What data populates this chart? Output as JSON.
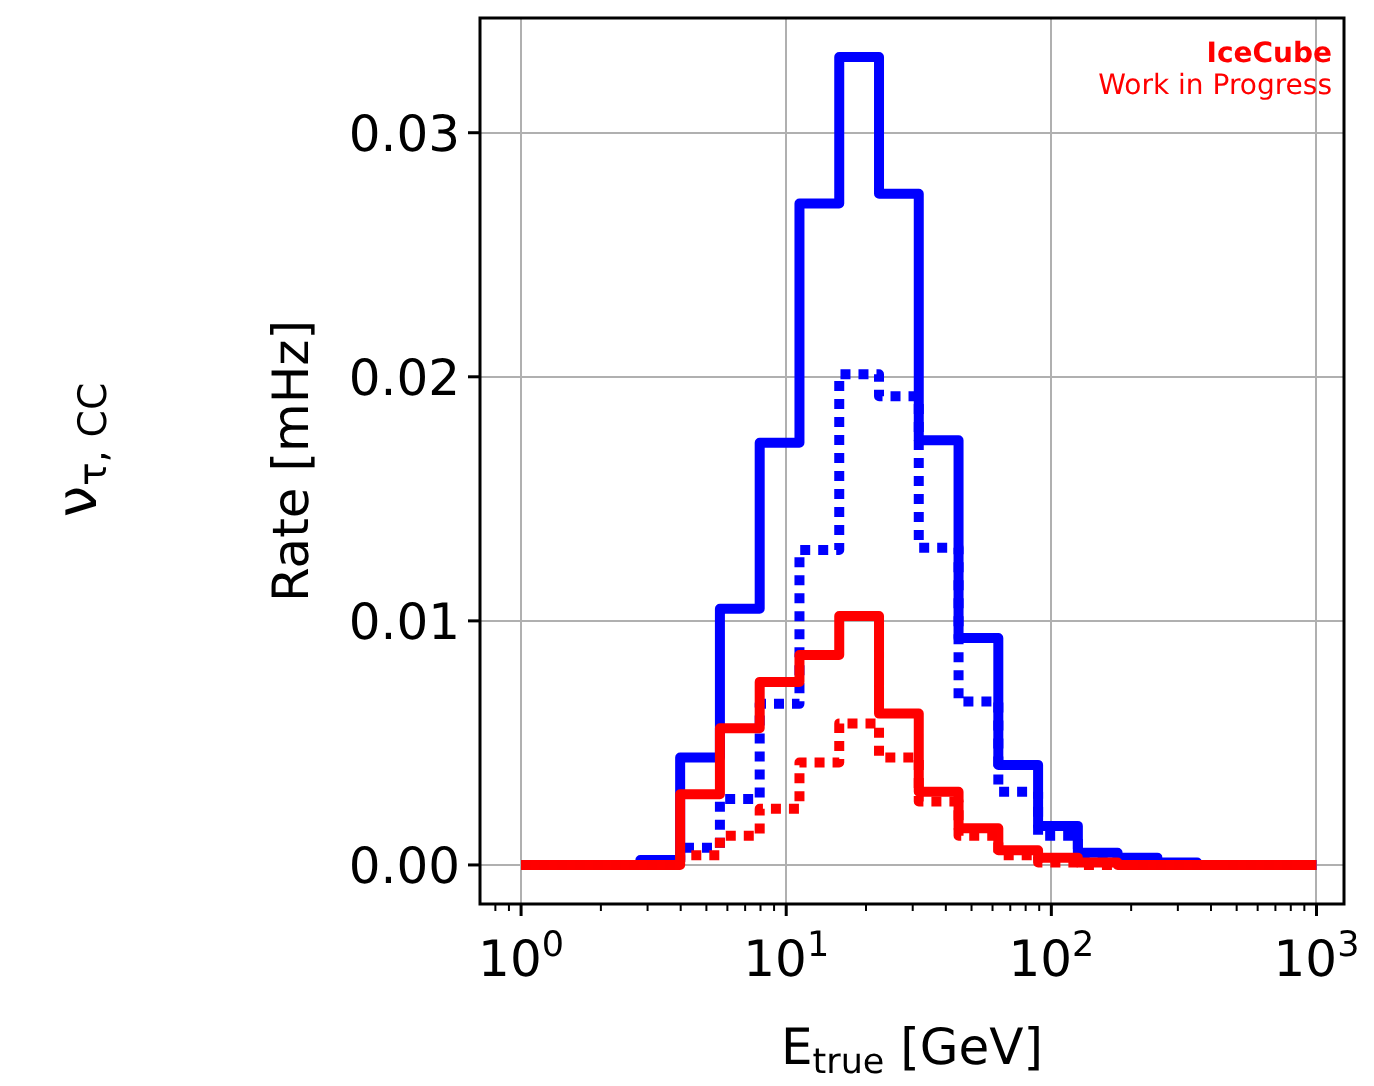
{
  "chart_data": {
    "type": "histogram",
    "xlabel": "E$_{true}$ [GeV]",
    "ylabel": "Rate [mHz]",
    "annotations": [
      "IceCube",
      "Work in Progress",
      "ν$_{τ, CC}$"
    ],
    "bins": [
      1,
      1.413,
      1.995,
      2.818,
      3.981,
      5.623,
      7.943,
      11.22,
      15.85,
      22.39,
      31.62,
      44.67,
      63.1,
      89.13,
      125.9,
      177.8,
      251.2,
      354.8,
      501.2,
      707.9,
      1000
    ],
    "series": [
      {
        "color": "#0000ff",
        "line_style": "solid",
        "values": [
          0,
          0,
          0,
          0.0002,
          0.0044,
          0.0105,
          0.0173,
          0.0271,
          0.0331,
          0.0275,
          0.0174,
          0.0093,
          0.0041,
          0.0016,
          0.0005,
          0.0003,
          0.0001,
          0,
          0,
          0
        ]
      },
      {
        "color": "#0000fe",
        "line_style": "dotted",
        "values": [
          0,
          0,
          0,
          0,
          0.0007,
          0.0027,
          0.0066,
          0.0129,
          0.0201,
          0.0192,
          0.013,
          0.0067,
          0.003,
          0.0012,
          0.0004,
          0.0001,
          0,
          0,
          0,
          0
        ]
      },
      {
        "color": "#ff0000",
        "line_style": "solid",
        "values": [
          0,
          0,
          0,
          0,
          0.0029,
          0.0056,
          0.0075,
          0.0086,
          0.0102,
          0.0062,
          0.003,
          0.0015,
          0.0006,
          0.0003,
          0.0001,
          0,
          0,
          0,
          0,
          0
        ]
      },
      {
        "color": "#fe0000",
        "line_style": "dotted",
        "values": [
          0,
          0,
          0,
          0,
          0.0004,
          0.0012,
          0.0023,
          0.0042,
          0.0058,
          0.0044,
          0.0026,
          0.0012,
          0.0004,
          0.0001,
          0,
          0,
          0,
          0,
          0,
          0
        ]
      }
    ],
    "log": "x",
    "xlim": [
      0.73,
      1270
    ],
    "ylim": [
      -0.0016,
      0.0347
    ],
    "xticks": [
      {
        "value": 1,
        "label": "10$^{0}$"
      },
      {
        "value": 10,
        "label": "10$^{1}$"
      },
      {
        "value": 100,
        "label": "10$^{2}$"
      },
      {
        "value": 1000,
        "label": "10$^{3}$"
      }
    ],
    "yticks": [
      {
        "value": 0,
        "label": "0.00"
      },
      {
        "value": 0.01,
        "label": "0.01"
      },
      {
        "value": 0.02,
        "label": "0.02"
      },
      {
        "value": 0.03,
        "label": "0.03"
      }
    ],
    "grid": true,
    "legend": false
  }
}
